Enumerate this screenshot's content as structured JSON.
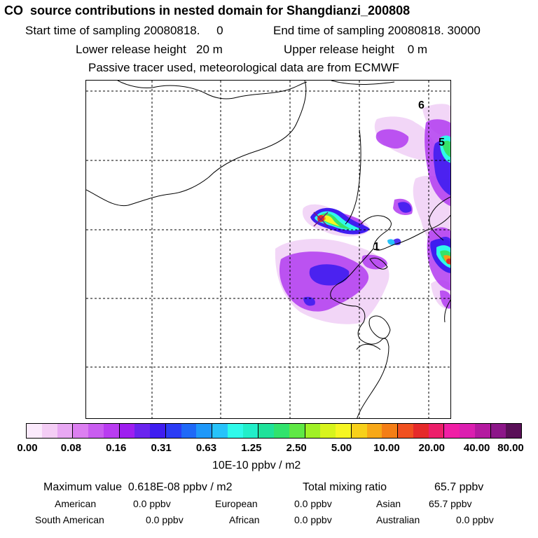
{
  "header": {
    "title": "CO  source contributions in nested domain for Shangdianzi_200808",
    "start_label": "Start time of sampling 20080818.     0",
    "end_label": "End time of sampling 20080818. 30000",
    "lower_label": "Lower release height   20 m",
    "upper_label": "Upper release height    0 m",
    "tracer_note": "Passive tracer used, meteorological data are from ECMWF"
  },
  "map": {
    "labels": [
      "6",
      "5",
      "1"
    ],
    "colors": {
      "coast": "#000000",
      "grid": "#000000",
      "light": "#f2d6f7",
      "violet": "#b23bf0",
      "blue": "#3f1df0",
      "cyan": "#2ffaea",
      "green": "#36e36a",
      "yellow": "#f6f623",
      "orange": "#f79b18",
      "red": "#e52a2a",
      "marker": "#7a1a7a"
    }
  },
  "colorbar": {
    "colors": [
      "#fbeafc",
      "#f4cdf5",
      "#e8a8f3",
      "#dc7ff1",
      "#c95df0",
      "#b93cf1",
      "#9e1ff0",
      "#6a24ee",
      "#3f1df0",
      "#2b3cf5",
      "#1f69f7",
      "#1f98f9",
      "#27c3fa",
      "#2ffaea",
      "#22efc9",
      "#1fe29a",
      "#31e36d",
      "#5fe845",
      "#a0f026",
      "#d7f41c",
      "#f6f623",
      "#f7d01a",
      "#f7a818",
      "#f47e16",
      "#f05020",
      "#e52a2a",
      "#ec1f6a",
      "#f01fa5",
      "#db1fb0",
      "#b41aa0",
      "#8c1689",
      "#5a1058"
    ],
    "tick_labels": [
      "0.00",
      "0.08",
      "0.16",
      "0.31",
      "0.63",
      "1.25",
      "2.50",
      "5.00",
      "10.00",
      "20.00",
      "40.00",
      "80.00"
    ],
    "units": "10E-10 ppbv / m2"
  },
  "stats": {
    "max_value": "Maximum value  0.618E-08 ppbv / m2",
    "total_mixing": "Total mixing ratio",
    "total_mixing_value": "65.7 ppbv",
    "american_label": "American",
    "american_value": "0.0 ppbv",
    "european_label": "European",
    "european_value": "0.0 ppbv",
    "asian_label": "Asian",
    "asian_value": "65.7 ppbv",
    "south_american_label": "South American",
    "south_american_value": "0.0 ppbv",
    "african_label": "African",
    "african_value": "0.0 ppbv",
    "australian_label": "Australian",
    "australian_value": "0.0 ppbv"
  }
}
